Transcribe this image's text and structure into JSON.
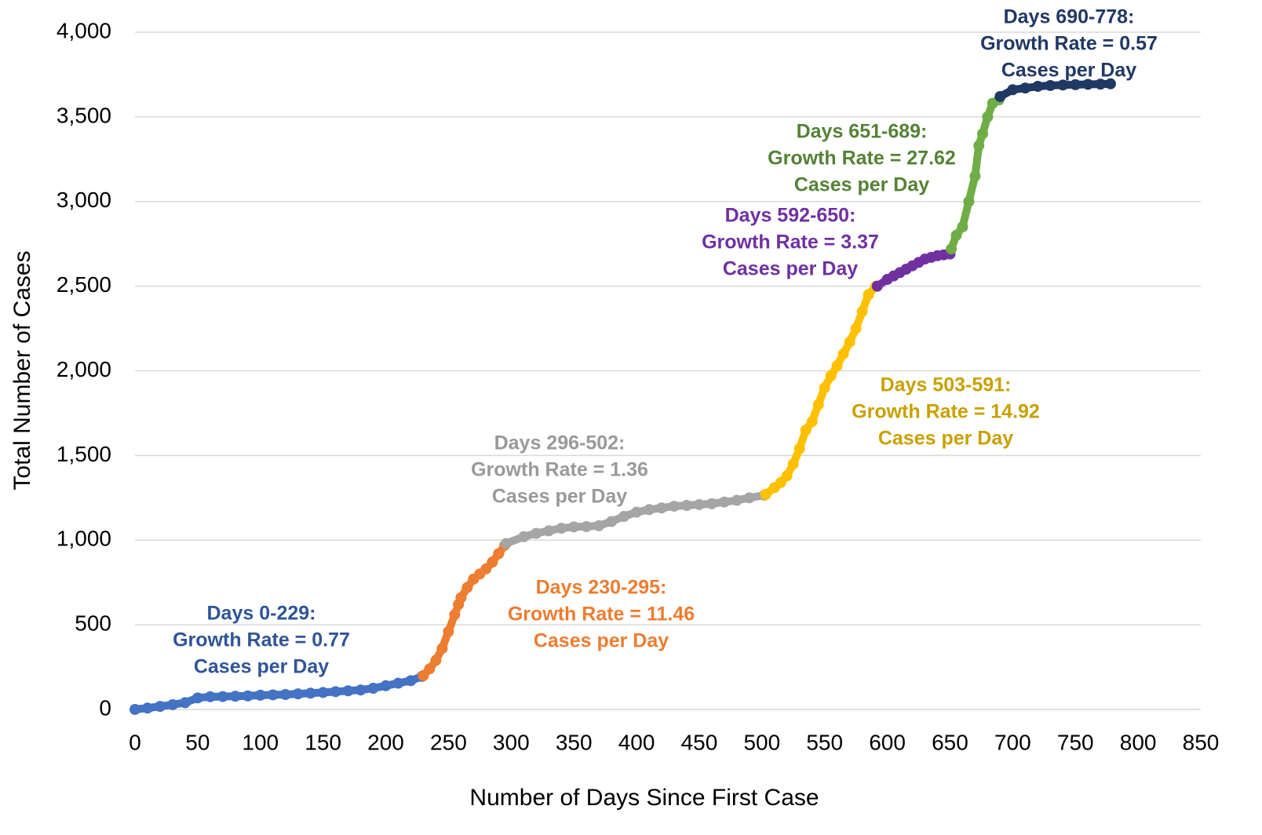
{
  "chart_data": {
    "type": "scatter",
    "x_label": "Number of Days Since First Case",
    "y_label": "Total Number of Cases",
    "xlim": [
      0,
      850
    ],
    "ylim": [
      0,
      4000
    ],
    "xticks": [
      0,
      50,
      100,
      150,
      200,
      250,
      300,
      350,
      400,
      450,
      500,
      550,
      600,
      650,
      700,
      750,
      800,
      850
    ],
    "yticks": [
      0,
      500,
      {
        "value": 1000,
        "label": "1,000"
      },
      {
        "value": 1500,
        "label": "1,500"
      },
      {
        "value": 2000,
        "label": "2,000"
      },
      {
        "value": 2500,
        "label": "2,500"
      },
      {
        "value": 3000,
        "label": "3,000"
      },
      {
        "value": 3500,
        "label": "3,500"
      },
      {
        "value": 4000,
        "label": "4,000"
      }
    ],
    "grid": true,
    "series": [
      {
        "color": "#4472c4",
        "annotation": [
          "Days 0-229:",
          "Growth Rate = 0.77",
          "Cases per Day"
        ],
        "annotation_color": "#2f5597",
        "x": [
          0,
          10,
          20,
          30,
          40,
          50,
          60,
          70,
          80,
          90,
          100,
          110,
          120,
          130,
          140,
          150,
          160,
          170,
          180,
          190,
          200,
          210,
          220,
          229
        ],
        "values": [
          0,
          8,
          18,
          28,
          40,
          68,
          75,
          76,
          78,
          80,
          84,
          86,
          88,
          92,
          96,
          100,
          105,
          110,
          115,
          125,
          140,
          155,
          170,
          195
        ]
      },
      {
        "color": "#ed7d31",
        "annotation": [
          "Days 230-295:",
          "Growth Rate = 11.46",
          "Cases per Day"
        ],
        "annotation_color": "#ed7d31",
        "x": [
          230,
          235,
          240,
          245,
          250,
          255,
          258,
          260,
          265,
          270,
          275,
          280,
          285,
          290,
          295
        ],
        "values": [
          200,
          240,
          290,
          360,
          460,
          560,
          620,
          660,
          720,
          770,
          800,
          830,
          870,
          920,
          970
        ]
      },
      {
        "color": "#a5a5a5",
        "annotation": [
          "Days 296-502:",
          "Growth Rate = 1.36",
          "Cases per Day"
        ],
        "annotation_color": "#999999",
        "x": [
          296,
          310,
          320,
          330,
          340,
          350,
          360,
          370,
          380,
          390,
          400,
          410,
          420,
          430,
          440,
          450,
          460,
          470,
          480,
          490,
          502
        ],
        "values": [
          980,
          1020,
          1040,
          1055,
          1070,
          1078,
          1080,
          1085,
          1110,
          1140,
          1165,
          1180,
          1190,
          1200,
          1205,
          1210,
          1215,
          1225,
          1235,
          1250,
          1265
        ]
      },
      {
        "color": "#ffc000",
        "annotation": [
          "Days 503-591:",
          "Growth Rate = 14.92",
          "Cases per Day"
        ],
        "annotation_color": "#c9a000",
        "x": [
          503,
          510,
          515,
          520,
          525,
          530,
          535,
          540,
          545,
          550,
          555,
          560,
          565,
          570,
          575,
          580,
          585,
          591
        ],
        "values": [
          1270,
          1310,
          1340,
          1380,
          1450,
          1540,
          1650,
          1700,
          1800,
          1900,
          1970,
          2030,
          2100,
          2170,
          2250,
          2350,
          2450,
          2500
        ]
      },
      {
        "color": "#7030a0",
        "annotation": [
          "Days 592-650:",
          "Growth Rate = 3.37",
          "Cases per Day"
        ],
        "annotation_color": "#7030a0",
        "x": [
          592,
          600,
          605,
          610,
          615,
          620,
          625,
          630,
          635,
          640,
          645,
          650
        ],
        "values": [
          2500,
          2540,
          2560,
          2580,
          2600,
          2620,
          2640,
          2660,
          2670,
          2680,
          2685,
          2690
        ]
      },
      {
        "color": "#70ad47",
        "annotation": [
          "Days 651-689:",
          "Growth Rate = 27.62",
          "Cases per Day"
        ],
        "annotation_color": "#548235",
        "x": [
          651,
          655,
          660,
          665,
          670,
          673,
          676,
          680,
          684,
          689
        ],
        "values": [
          2720,
          2800,
          2850,
          3000,
          3150,
          3330,
          3400,
          3500,
          3580,
          3600
        ]
      },
      {
        "color": "#203864",
        "annotation": [
          "Days 690-778:",
          "Growth Rate = 0.57",
          "Cases per Day"
        ],
        "annotation_color": "#203864",
        "x": [
          690,
          700,
          710,
          720,
          730,
          740,
          750,
          760,
          770,
          778
        ],
        "values": [
          3620,
          3660,
          3670,
          3680,
          3685,
          3688,
          3690,
          3692,
          3693,
          3695
        ]
      }
    ]
  }
}
